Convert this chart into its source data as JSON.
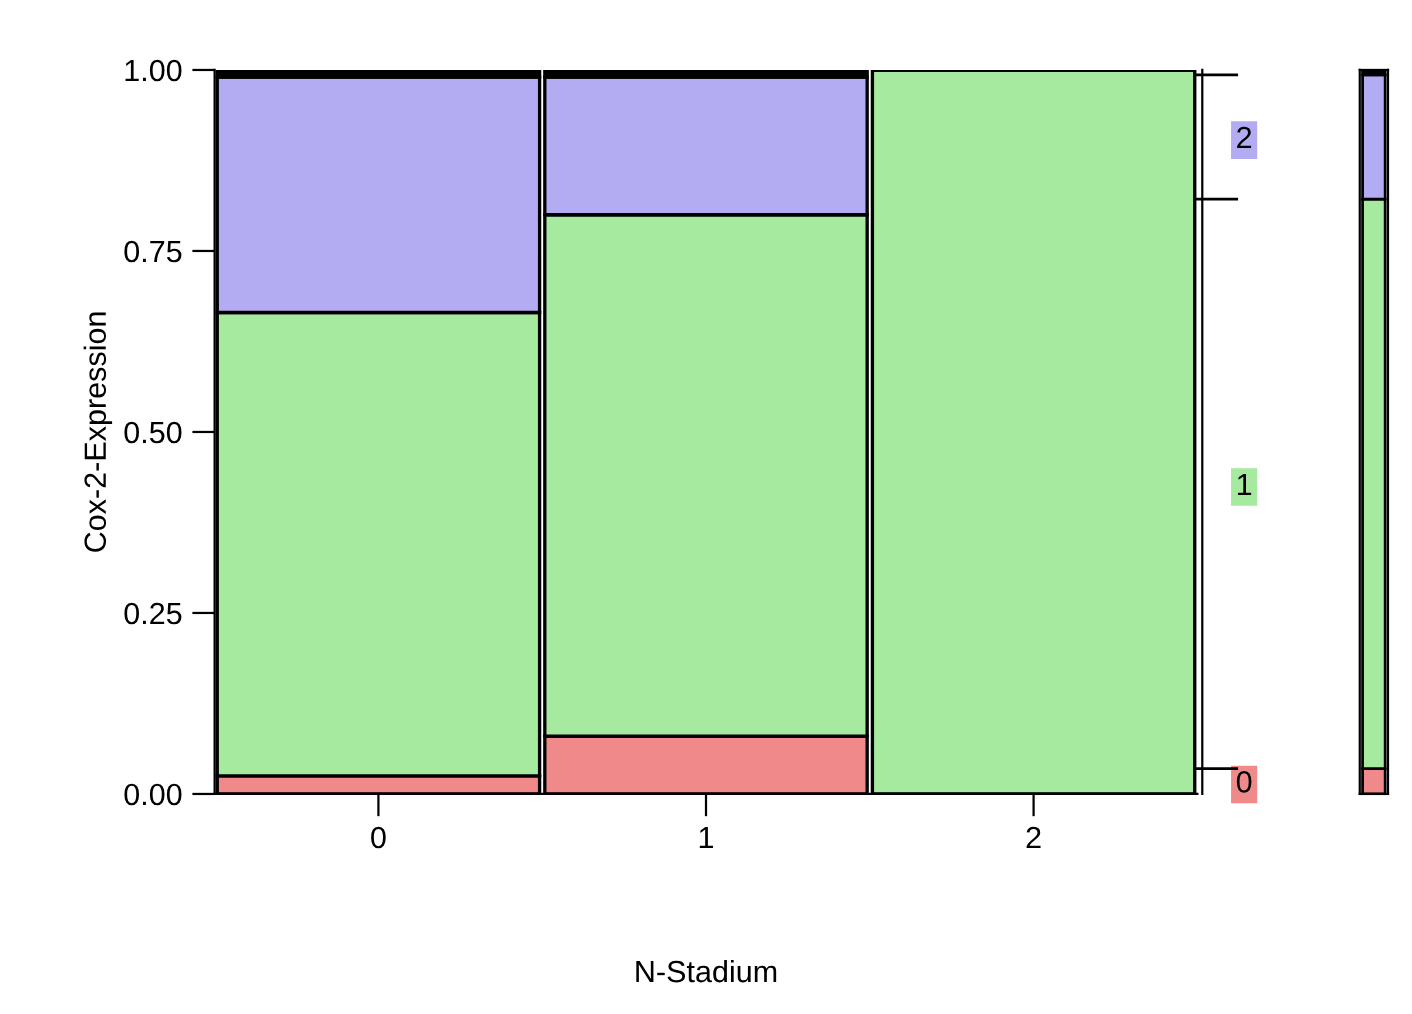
{
  "chart_data": {
    "type": "bar",
    "stacked": true,
    "ylabel": "Cox-2-Expression",
    "xlabel": "N-Stadium",
    "categories": [
      "0",
      "1",
      "2"
    ],
    "ylim": [
      0,
      1
    ],
    "yticks": [
      {
        "value": 0,
        "label": "0.00"
      },
      {
        "value": 0.25,
        "label": "0.25"
      },
      {
        "value": 0.5,
        "label": "0.50"
      },
      {
        "value": 0.75,
        "label": "0.75"
      },
      {
        "value": 1,
        "label": "1.00"
      }
    ],
    "series": [
      {
        "name": "0",
        "color": "#f08a8a",
        "values": [
          0.025,
          0.08,
          0
        ]
      },
      {
        "name": "1",
        "color": "#a6eaa0",
        "values": [
          0.64,
          0.72,
          1.0
        ]
      },
      {
        "name": "2",
        "color": "#b4acf2",
        "values": [
          0.325,
          0.19,
          0
        ]
      },
      {
        "color": "#000000",
        "values": [
          0.01,
          0.01,
          0
        ]
      }
    ]
  }
}
